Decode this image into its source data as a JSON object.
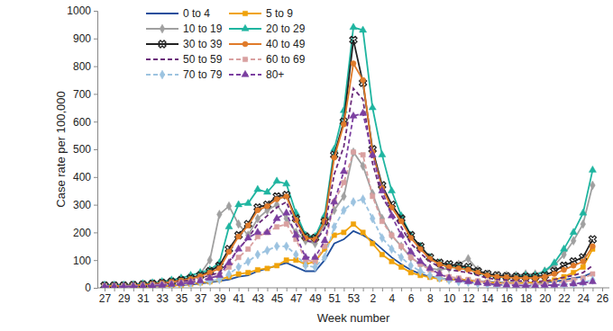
{
  "chart_data": {
    "type": "line",
    "x_label": "Week number",
    "y_label": "Case rate per 100,000",
    "categories": [
      "27",
      null,
      "29",
      null,
      "31",
      null,
      "33",
      null,
      "35",
      null,
      "37",
      null,
      "39",
      null,
      "41",
      null,
      "43",
      null,
      "45",
      null,
      "47",
      null,
      "49",
      null,
      "51",
      null,
      "53",
      null,
      "2",
      null,
      "4",
      null,
      "6",
      null,
      "8",
      null,
      "10",
      null,
      "12",
      null,
      "14",
      null,
      "16",
      null,
      "18",
      null,
      "20",
      null,
      "22",
      null,
      "24",
      null,
      "26"
    ],
    "ylim": [
      0,
      1000
    ],
    "yticks": [
      0,
      100,
      200,
      300,
      400,
      500,
      600,
      700,
      800,
      900,
      1000
    ],
    "grid": false,
    "legend": "upper left",
    "series": [
      {
        "name": "0 to 4",
        "color": "#1f4e9c",
        "marker": "none",
        "line_style": "solid",
        "values": [
          3,
          3,
          3,
          3,
          4,
          5,
          6,
          8,
          10,
          12,
          15,
          20,
          25,
          30,
          40,
          45,
          60,
          70,
          80,
          90,
          75,
          60,
          60,
          100,
          160,
          175,
          205,
          190,
          170,
          140,
          110,
          85,
          65,
          50,
          40,
          35,
          30,
          30,
          28,
          25,
          22,
          20,
          18,
          18,
          18,
          18,
          20,
          22,
          28,
          35,
          40,
          55,
          null
        ]
      },
      {
        "name": "5 to 9",
        "color": "#f0a30a",
        "marker": "square",
        "line_style": "solid",
        "values": [
          3,
          3,
          3,
          3,
          4,
          5,
          6,
          8,
          10,
          14,
          18,
          22,
          30,
          40,
          50,
          55,
          65,
          70,
          80,
          100,
          100,
          85,
          95,
          140,
          190,
          200,
          230,
          200,
          160,
          120,
          95,
          75,
          55,
          45,
          38,
          32,
          30,
          30,
          28,
          22,
          20,
          18,
          17,
          17,
          18,
          20,
          22,
          28,
          40,
          55,
          75,
          140,
          null
        ]
      },
      {
        "name": "10 to 19",
        "color": "#a0a0a0",
        "marker": "diamond",
        "line_style": "solid",
        "values": [
          5,
          5,
          5,
          6,
          7,
          9,
          12,
          16,
          22,
          30,
          50,
          100,
          265,
          295,
          230,
          190,
          250,
          280,
          300,
          250,
          200,
          170,
          160,
          230,
          280,
          330,
          490,
          440,
          340,
          250,
          190,
          150,
          110,
          85,
          70,
          65,
          70,
          85,
          105,
          65,
          50,
          45,
          45,
          45,
          50,
          50,
          60,
          80,
          120,
          170,
          230,
          370,
          null
        ]
      },
      {
        "name": "20 to 29",
        "color": "#1fb5a0",
        "marker": "triangle",
        "line_style": "solid",
        "values": [
          10,
          10,
          10,
          12,
          15,
          18,
          22,
          28,
          35,
          45,
          55,
          65,
          90,
          220,
          300,
          305,
          355,
          345,
          385,
          375,
          270,
          190,
          185,
          260,
          500,
          640,
          940,
          930,
          650,
          480,
          350,
          260,
          190,
          150,
          110,
          90,
          80,
          75,
          70,
          55,
          45,
          40,
          38,
          40,
          45,
          45,
          60,
          90,
          140,
          200,
          270,
          425,
          null
        ]
      },
      {
        "name": "30 to 39",
        "color": "#222222",
        "marker": "x",
        "line_style": "solid",
        "values": [
          8,
          8,
          8,
          10,
          12,
          15,
          18,
          22,
          28,
          35,
          45,
          60,
          80,
          140,
          190,
          230,
          290,
          300,
          330,
          335,
          250,
          185,
          180,
          240,
          480,
          600,
          895,
          740,
          500,
          370,
          300,
          250,
          190,
          150,
          110,
          90,
          85,
          80,
          75,
          60,
          50,
          45,
          42,
          40,
          40,
          40,
          45,
          60,
          80,
          95,
          110,
          175,
          null
        ]
      },
      {
        "name": "40 to 49",
        "color": "#e07b2a",
        "marker": "circle",
        "line_style": "solid",
        "values": [
          7,
          7,
          7,
          9,
          11,
          14,
          17,
          21,
          26,
          32,
          42,
          55,
          70,
          130,
          185,
          225,
          280,
          295,
          320,
          330,
          245,
          180,
          175,
          240,
          470,
          590,
          810,
          750,
          490,
          360,
          290,
          240,
          180,
          140,
          105,
          85,
          75,
          70,
          65,
          55,
          45,
          40,
          38,
          35,
          35,
          35,
          40,
          50,
          65,
          80,
          95,
          150,
          null
        ]
      },
      {
        "name": "50 to 59",
        "color": "#6a2a7a",
        "marker": "none",
        "line_style": "dashed",
        "values": [
          6,
          6,
          6,
          7,
          9,
          11,
          14,
          18,
          22,
          28,
          35,
          45,
          55,
          95,
          140,
          180,
          230,
          260,
          290,
          310,
          230,
          170,
          165,
          215,
          410,
          510,
          720,
          680,
          450,
          330,
          270,
          220,
          160,
          125,
          95,
          75,
          65,
          60,
          55,
          45,
          35,
          30,
          28,
          25,
          25,
          22,
          25,
          30,
          38,
          45,
          55,
          80,
          null
        ]
      },
      {
        "name": "60 to 69",
        "color": "#d9a0a0",
        "marker": "square",
        "line_style": "dashed",
        "values": [
          5,
          5,
          5,
          6,
          7,
          9,
          12,
          15,
          18,
          22,
          28,
          35,
          45,
          75,
          110,
          140,
          185,
          200,
          220,
          230,
          175,
          100,
          95,
          150,
          310,
          380,
          490,
          480,
          330,
          240,
          190,
          150,
          110,
          85,
          65,
          50,
          40,
          35,
          30,
          25,
          20,
          18,
          15,
          15,
          14,
          12,
          14,
          18,
          22,
          28,
          35,
          50,
          null
        ]
      },
      {
        "name": "70 to 79",
        "color": "#9cc3e0",
        "marker": "diamond",
        "line_style": "dashed",
        "values": [
          4,
          4,
          4,
          5,
          6,
          7,
          9,
          11,
          13,
          16,
          20,
          24,
          30,
          50,
          75,
          95,
          120,
          135,
          150,
          150,
          120,
          80,
          75,
          110,
          220,
          280,
          310,
          320,
          250,
          180,
          140,
          110,
          80,
          60,
          45,
          35,
          28,
          22,
          20,
          15,
          12,
          10,
          9,
          8,
          8,
          7,
          8,
          10,
          12,
          15,
          20,
          28,
          null
        ]
      },
      {
        "name": "80+",
        "color": "#7b3fa0",
        "marker": "triangle",
        "line_style": "dashed",
        "values": [
          4,
          4,
          4,
          5,
          6,
          7,
          9,
          12,
          15,
          20,
          25,
          35,
          45,
          90,
          140,
          180,
          200,
          200,
          250,
          270,
          190,
          110,
          110,
          170,
          310,
          420,
          620,
          630,
          480,
          350,
          260,
          190,
          130,
          95,
          70,
          50,
          35,
          28,
          22,
          18,
          15,
          12,
          10,
          9,
          8,
          8,
          9,
          10,
          12,
          14,
          18,
          22,
          null
        ]
      }
    ]
  }
}
